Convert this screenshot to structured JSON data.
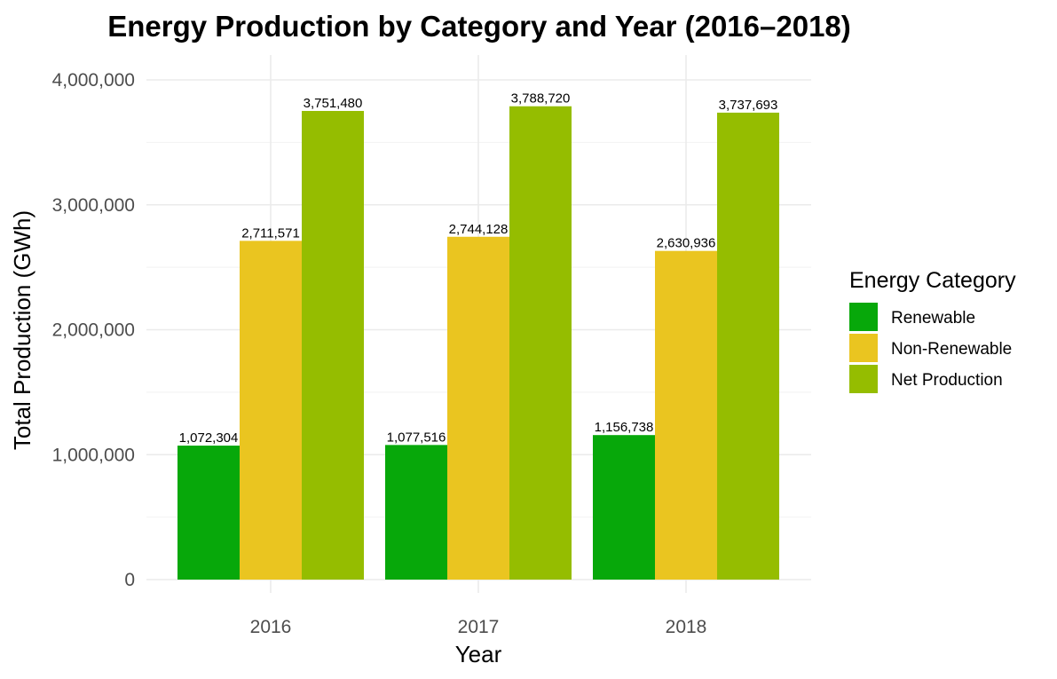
{
  "chart_data": {
    "type": "bar",
    "title": "Energy Production by Category and Year (2016–2018)",
    "xlabel": "Year",
    "ylabel": "Total Production (GWh)",
    "categories": [
      "2016",
      "2017",
      "2018"
    ],
    "series": [
      {
        "name": "Renewable",
        "color": "#07A80A",
        "values": [
          1072304,
          1077516,
          1156738
        ],
        "labels": [
          "1,072,304",
          "1,077,516",
          "1,156,738"
        ]
      },
      {
        "name": "Non-Renewable",
        "color": "#EAC520",
        "values": [
          2711571,
          2744128,
          2630936
        ],
        "labels": [
          "2,711,571",
          "2,744,128",
          "2,630,936"
        ]
      },
      {
        "name": "Net Production",
        "color": "#95BD00",
        "values": [
          3751480,
          3788720,
          3737693
        ],
        "labels": [
          "3,751,480",
          "3,788,720",
          "3,737,693"
        ]
      }
    ],
    "ylim": [
      0,
      4000000
    ],
    "yticks": [
      0,
      1000000,
      2000000,
      3000000,
      4000000
    ],
    "ytick_labels": [
      "0",
      "1,000,000",
      "2,000,000",
      "3,000,000",
      "4,000,000"
    ],
    "grid": true,
    "legend": {
      "title": "Energy Category",
      "position": "right"
    }
  }
}
